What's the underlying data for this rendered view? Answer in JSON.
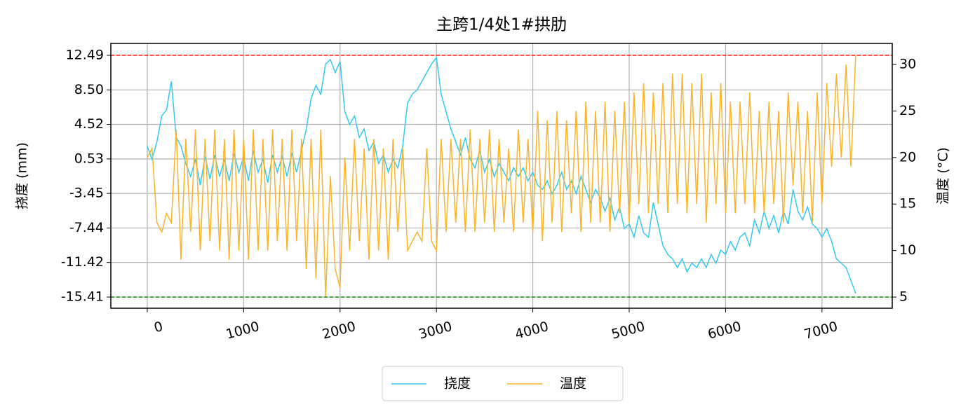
{
  "chart_data": {
    "type": "line",
    "title": "主跨1/4处1#拱肋",
    "ylabel": "挠度 (mm)",
    "y2label": "温度 (°C)",
    "x": [
      0,
      50,
      100,
      150,
      200,
      250,
      300,
      350,
      400,
      450,
      500,
      550,
      600,
      650,
      700,
      750,
      800,
      850,
      900,
      950,
      1000,
      1050,
      1100,
      1150,
      1200,
      1250,
      1300,
      1350,
      1400,
      1450,
      1500,
      1550,
      1600,
      1650,
      1700,
      1750,
      1800,
      1850,
      1900,
      1950,
      2000,
      2050,
      2100,
      2150,
      2200,
      2250,
      2300,
      2350,
      2400,
      2450,
      2500,
      2550,
      2600,
      2650,
      2700,
      2750,
      2800,
      2850,
      2900,
      2950,
      3000,
      3050,
      3100,
      3150,
      3200,
      3250,
      3300,
      3350,
      3400,
      3450,
      3500,
      3550,
      3600,
      3650,
      3700,
      3750,
      3800,
      3850,
      3900,
      3950,
      4000,
      4050,
      4100,
      4150,
      4200,
      4250,
      4300,
      4350,
      4400,
      4450,
      4500,
      4550,
      4600,
      4650,
      4700,
      4750,
      4800,
      4850,
      4900,
      4950,
      5000,
      5050,
      5100,
      5150,
      5200,
      5250,
      5300,
      5350,
      5400,
      5450,
      5500,
      5550,
      5600,
      5650,
      5700,
      5750,
      5800,
      5850,
      5900,
      5950,
      6000,
      6050,
      6100,
      6150,
      6200,
      6250,
      6300,
      6350,
      6400,
      6450,
      6500,
      6550,
      6600,
      6650,
      6700,
      6750,
      6800,
      6850,
      6900,
      6950,
      7000,
      7050,
      7100,
      7150,
      7200,
      7250,
      7300,
      7350
    ],
    "series": [
      {
        "name": "挠度",
        "color": "#36c9ef",
        "axis": "y",
        "values": [
          2.0,
          0.5,
          2.5,
          5.5,
          6.2,
          9.5,
          3.0,
          2.0,
          0.0,
          -1.5,
          0.5,
          -2.5,
          0.8,
          -1.8,
          1.0,
          -1.5,
          0.5,
          -2.0,
          1.2,
          -1.0,
          0.8,
          -2.0,
          1.5,
          -1.0,
          0.5,
          -2.2,
          1.0,
          -1.0,
          0.8,
          -1.5,
          1.2,
          -1.0,
          1.5,
          4.0,
          7.5,
          9.0,
          8.0,
          11.5,
          12.0,
          10.5,
          11.8,
          6.0,
          4.5,
          5.5,
          3.0,
          4.0,
          1.5,
          2.5,
          0.0,
          1.0,
          -1.0,
          0.5,
          -0.5,
          2.0,
          7.0,
          8.0,
          8.5,
          9.5,
          10.5,
          11.5,
          12.2,
          8.0,
          6.0,
          4.0,
          2.5,
          1.0,
          3.0,
          0.5,
          -0.5,
          1.5,
          -1.0,
          0.5,
          -1.5,
          0.0,
          -1.0,
          -2.0,
          -0.5,
          -1.5,
          -0.5,
          -2.0,
          -1.0,
          -2.5,
          -3.0,
          -2.0,
          -3.5,
          -2.5,
          -1.0,
          -3.0,
          -2.0,
          -3.5,
          -1.5,
          -3.0,
          -4.5,
          -3.0,
          -4.0,
          -5.5,
          -4.0,
          -6.5,
          -5.0,
          -7.5,
          -7.0,
          -8.5,
          -6.0,
          -8.0,
          -8.5,
          -4.5,
          -7.0,
          -9.5,
          -10.5,
          -11.0,
          -12.0,
          -11.0,
          -12.5,
          -11.5,
          -12.0,
          -11.0,
          -12.0,
          -10.5,
          -11.5,
          -10.0,
          -10.5,
          -9.0,
          -10.0,
          -8.5,
          -8.0,
          -9.5,
          -6.5,
          -8.0,
          -5.5,
          -7.5,
          -6.0,
          -8.0,
          -5.5,
          -7.0,
          -3.0,
          -5.5,
          -6.5,
          -5.0,
          -7.0,
          -7.5,
          -8.5,
          -7.5,
          -9.0,
          -11.0,
          -11.5,
          -12.0,
          -13.5,
          -15.0
        ]
      },
      {
        "name": "温度",
        "color": "#f9b42c",
        "axis": "y2",
        "values": [
          20,
          21,
          13,
          12,
          14,
          13,
          23,
          9,
          22,
          12,
          23,
          10,
          22,
          11,
          23,
          10,
          22,
          9,
          23,
          10,
          22,
          9,
          23,
          10,
          22,
          10,
          23,
          11,
          22,
          10,
          23,
          11,
          22,
          8,
          22,
          7,
          23,
          5,
          18,
          8,
          6,
          20,
          10,
          22,
          11,
          21,
          9,
          22,
          10,
          21,
          9,
          22,
          12,
          21,
          10,
          11,
          12,
          11,
          21,
          11,
          10,
          22,
          12,
          22,
          13,
          22,
          12,
          23,
          12,
          22,
          13,
          23,
          12,
          22,
          13,
          21,
          12,
          23,
          13,
          22,
          12,
          25,
          11,
          24,
          13,
          25,
          12,
          24,
          14,
          25,
          12,
          26,
          13,
          25,
          13,
          26,
          12,
          25,
          14,
          26,
          13,
          27,
          15,
          28,
          14,
          27,
          15,
          28,
          14,
          29,
          15,
          29,
          14,
          28,
          15,
          29,
          13,
          27,
          15,
          28,
          14,
          26,
          14,
          26,
          15,
          27,
          14,
          25,
          14,
          26,
          15,
          25,
          13,
          27,
          17,
          26,
          14,
          25,
          13,
          27,
          15,
          28,
          19,
          29,
          20,
          30,
          19,
          31
        ]
      }
    ],
    "hlines": [
      {
        "value": 12.49,
        "color": "#ff0000"
      },
      {
        "value": -15.41,
        "color": "#008000"
      }
    ],
    "xlim": [
      -378,
      7729
    ],
    "xticks": [
      0,
      1000,
      2000,
      3000,
      4000,
      5000,
      6000,
      7000
    ],
    "ylim": [
      -16.7,
      13.86
    ],
    "yticks": [
      12.49,
      {
        "value": 8.5,
        "label": "8.50"
      },
      4.52,
      0.53,
      -3.45,
      -7.44,
      -11.42,
      -15.41
    ],
    "y2lim": [
      3.8,
      32.26
    ],
    "y2ticks": [
      5,
      10,
      15,
      20,
      25,
      30
    ],
    "grid": true,
    "legend": "bottom"
  }
}
